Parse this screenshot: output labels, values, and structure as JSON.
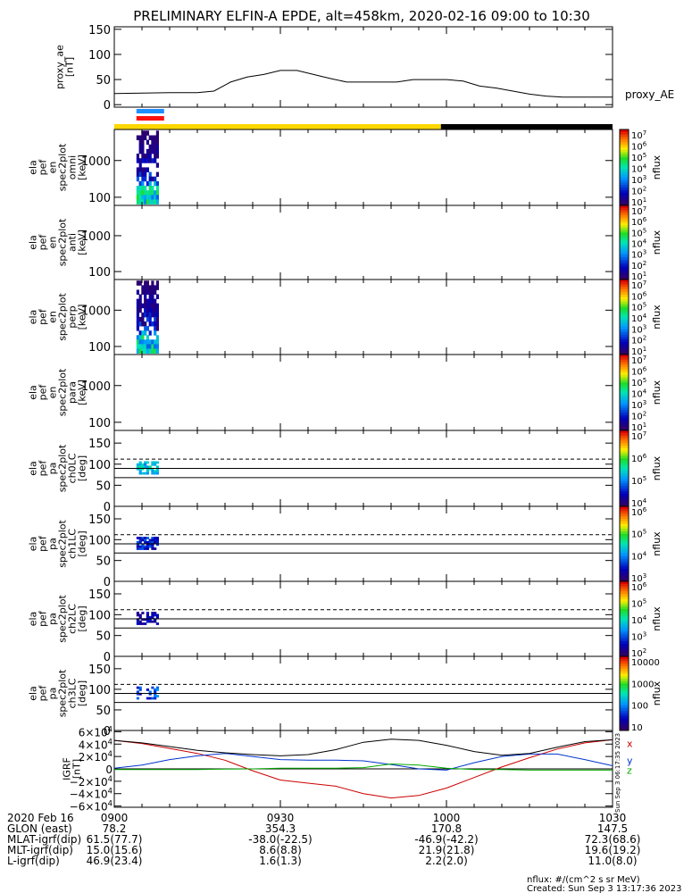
{
  "title": "PRELIMINARY ELFIN-A EPDE, alt=458km, 2020-02-16 09:00 to 10:30",
  "colors": {
    "day_bar": "#ffd700",
    "night_bar": "#000000",
    "sci_blue": "#1f8fff",
    "sci_red": "#ff1010",
    "bx": "#cc0000",
    "by": "#0033cc",
    "bz": "#00aa00",
    "btot": "#000000"
  },
  "colorbars": [
    {
      "label": "nflux",
      "ticks": [
        "10^7",
        "10^6",
        "10^5",
        "10^4",
        "10^3",
        "10^2",
        "10^1"
      ]
    },
    {
      "label": "nflux",
      "ticks": [
        "10^7",
        "10^6",
        "10^5",
        "10^4",
        "10^3",
        "10^2",
        "10^1"
      ]
    },
    {
      "label": "nflux",
      "ticks": [
        "10^7",
        "10^6",
        "10^5",
        "10^4",
        "10^3",
        "10^2",
        "10^1"
      ]
    },
    {
      "label": "nflux",
      "ticks": [
        "10^7",
        "10^6",
        "10^5",
        "10^4",
        "10^3",
        "10^2",
        "10^1"
      ]
    },
    {
      "label": "nflux",
      "ticks": [
        "10^7",
        "10^6",
        "10^5",
        "10^4"
      ]
    },
    {
      "label": "nflux",
      "ticks": [
        "10^6",
        "10^5",
        "10^4",
        "10^3"
      ]
    },
    {
      "label": "nflux",
      "ticks": [
        "10^6",
        "10^5",
        "10^4",
        "10^3",
        "10^2"
      ]
    },
    {
      "label": "nflux",
      "ticks": [
        "10000",
        "1000",
        "100",
        "10"
      ]
    }
  ],
  "chart_data": [
    {
      "type": "line",
      "ylabel": [
        "proxy_ae",
        "[nT]"
      ],
      "series": [
        {
          "name": "proxy_AE",
          "x": [
            "09:00",
            "09:05",
            "09:10",
            "09:15",
            "09:18",
            "09:21",
            "09:24",
            "09:27",
            "09:30",
            "09:33",
            "09:36",
            "09:39",
            "09:42",
            "09:45",
            "09:48",
            "09:51",
            "09:54",
            "09:57",
            "10:00",
            "10:03",
            "10:06",
            "10:09",
            "10:12",
            "10:15",
            "10:18",
            "10:21",
            "10:24",
            "10:27",
            "10:30"
          ],
          "values": [
            22,
            23,
            24,
            24,
            27,
            45,
            55,
            60,
            68,
            68,
            60,
            52,
            45,
            45,
            45,
            45,
            50,
            50,
            50,
            47,
            37,
            33,
            27,
            21,
            17,
            15,
            15,
            15,
            15
          ]
        }
      ],
      "ylim": [
        -5,
        155
      ],
      "yticks": [
        "150",
        "100",
        "50",
        "0"
      ]
    },
    {
      "type": "heatmap",
      "ylabel": [
        "ela",
        "pef",
        "en",
        "spec2plot",
        "omni",
        "[keV]"
      ],
      "yscale": "log",
      "ylim": [
        60,
        7000
      ],
      "yticks": [
        "1000",
        "100"
      ],
      "active_time": [
        "09:04",
        "09:08"
      ],
      "color_range": "nflux"
    },
    {
      "type": "heatmap",
      "ylabel": [
        "ela",
        "pef",
        "en",
        "spec2plot",
        "anti",
        "[keV]"
      ],
      "yscale": "log",
      "ylim": [
        60,
        7000
      ],
      "yticks": [
        "1000",
        "100"
      ],
      "active_time": null,
      "color_range": "nflux"
    },
    {
      "type": "heatmap",
      "ylabel": [
        "ela",
        "pef",
        "en",
        "spec2plot",
        "perp",
        "[keV]"
      ],
      "yscale": "log",
      "ylim": [
        60,
        7000
      ],
      "yticks": [
        "1000",
        "100"
      ],
      "active_time": [
        "09:04",
        "09:08"
      ],
      "color_range": "nflux"
    },
    {
      "type": "heatmap",
      "ylabel": [
        "ela",
        "pef",
        "en",
        "spec2plot",
        "para",
        "[keV]"
      ],
      "yscale": "log",
      "ylim": [
        60,
        7000
      ],
      "yticks": [
        "1000",
        "100"
      ],
      "active_time": null,
      "color_range": "nflux"
    },
    {
      "type": "heatmap",
      "ylabel": [
        "ela",
        "pef",
        "pa",
        "spec2plot",
        "ch0LC",
        "[deg]"
      ],
      "ylim": [
        0,
        180
      ],
      "yticks": [
        "150",
        "100",
        "50",
        "0"
      ],
      "active_time": [
        "09:04",
        "09:08"
      ],
      "lc_solid": [
        90,
        68
      ],
      "lc_dashed": 112
    },
    {
      "type": "heatmap",
      "ylabel": [
        "ela",
        "pef",
        "pa",
        "spec2plot",
        "ch1LC",
        "[deg]"
      ],
      "ylim": [
        0,
        180
      ],
      "yticks": [
        "150",
        "100",
        "50",
        "0"
      ],
      "active_time": [
        "09:04",
        "09:08"
      ],
      "lc_solid": [
        90,
        68
      ],
      "lc_dashed": 112
    },
    {
      "type": "heatmap",
      "ylabel": [
        "ela",
        "pef",
        "pa",
        "spec2plot",
        "ch2LC",
        "[deg]"
      ],
      "ylim": [
        0,
        180
      ],
      "yticks": [
        "150",
        "100",
        "50",
        "0"
      ],
      "active_time": [
        "09:04",
        "09:08"
      ],
      "lc_solid": [
        90,
        68
      ],
      "lc_dashed": 112
    },
    {
      "type": "heatmap",
      "ylabel": [
        "ela",
        "pef",
        "pa",
        "spec2plot",
        "ch3LC",
        "[deg]"
      ],
      "ylim": [
        0,
        180
      ],
      "yticks": [
        "150",
        "100",
        "50",
        "0"
      ],
      "active_time": [
        "09:04",
        "09:08"
      ],
      "lc_solid": [
        90,
        68
      ],
      "lc_dashed": 112
    },
    {
      "type": "line",
      "ylabel": [
        "IGRF",
        "[nT]"
      ],
      "ylim": [
        -62000,
        62000
      ],
      "yticks": [
        "6×10^4",
        "4×10^4",
        "2×10^4",
        "0",
        "−2×10^4",
        "−4×10^4",
        "−6×10^4"
      ],
      "x": [
        "09:00",
        "09:05",
        "09:10",
        "09:15",
        "09:20",
        "09:25",
        "09:30",
        "09:35",
        "09:40",
        "09:45",
        "09:50",
        "09:55",
        "10:00",
        "10:05",
        "10:10",
        "10:15",
        "10:20",
        "10:25",
        "10:30"
      ],
      "series": [
        {
          "name": "B_x",
          "values": [
            46000,
            41000,
            33000,
            25000,
            14000,
            -3000,
            -18000,
            -23000,
            -28000,
            -40000,
            -47000,
            -43000,
            -31000,
            -14000,
            3000,
            18000,
            32000,
            42000,
            47000
          ]
        },
        {
          "name": "B_y",
          "values": [
            1000,
            6000,
            15000,
            21000,
            25000,
            20000,
            15000,
            14000,
            14000,
            13000,
            7000,
            0,
            -2000,
            10000,
            20000,
            24000,
            24000,
            15000,
            5000
          ]
        },
        {
          "name": "B_z",
          "values": [
            -1000,
            -1000,
            -1000,
            -1000,
            -500,
            0,
            1000,
            1000,
            1000,
            2000,
            8000,
            6000,
            1000,
            -1000,
            -1000,
            -2000,
            -2000,
            -2000,
            -2000
          ]
        },
        {
          "name": "B_total",
          "values": [
            46000,
            42000,
            36000,
            30000,
            26000,
            23000,
            21000,
            23000,
            31000,
            43000,
            48000,
            46000,
            38000,
            28000,
            22000,
            25000,
            35000,
            44000,
            47000
          ]
        }
      ],
      "labels": [
        "x",
        "y",
        "z"
      ]
    }
  ],
  "time_axis": {
    "ticks": [
      "0900",
      "0930",
      "1000",
      "1030"
    ],
    "rows": [
      {
        "label": "2020 Feb 16",
        "values": [
          "0900",
          "0930",
          "1000",
          "1030"
        ]
      },
      {
        "label": "GLON (east)",
        "values": [
          "78.2",
          "354.3",
          "170.8",
          "147.5"
        ]
      },
      {
        "label": "MLAT-igrf(dip)",
        "values": [
          "61.5(77.7)",
          "-38.0(-22.5)",
          "-46.9(-42.2)",
          "72.3(68.6)"
        ]
      },
      {
        "label": "MLT-igrf(dip)",
        "values": [
          "15.0(15.6)",
          "8.6(8.8)",
          "21.9(21.8)",
          "19.6(19.2)"
        ]
      },
      {
        "label": "L-igrf(dip)",
        "values": [
          "46.9(23.4)",
          "1.6(1.3)",
          "2.2(2.0)",
          "11.0(8.0)"
        ]
      }
    ]
  },
  "side_stamp": "Sun Sep  3 06:17:35 2023",
  "units_note": "nflux: #/(cm^2 s sr MeV)",
  "created": "Created: Sun Sep  3 13:17:36 2023"
}
